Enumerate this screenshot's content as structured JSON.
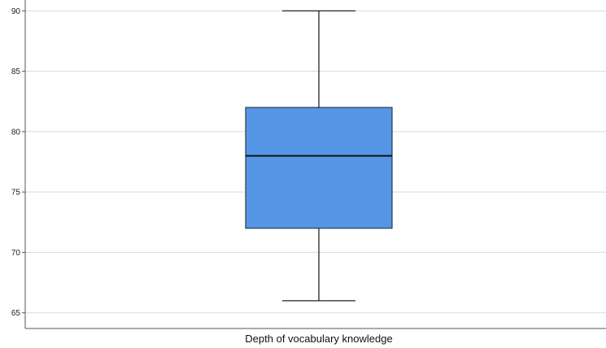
{
  "chart_data": {
    "type": "boxplot",
    "xlabel": "Depth of vocabulary knowledge",
    "ylabel": "",
    "ylim": [
      63.7,
      90.9
    ],
    "yticks": [
      65,
      70,
      75,
      80,
      85,
      90
    ],
    "grid": true,
    "series": [
      {
        "category": "Depth of vocabulary knowledge",
        "min": 66,
        "q1": 72,
        "median": 78,
        "q3": 82,
        "max": 90
      }
    ],
    "colors": {
      "box_fill": "#5596E6",
      "box_stroke": "#2B3A4A",
      "median": "#111111",
      "whisker": "#222222",
      "grid": "#D9D9D9",
      "axis": "#555555"
    }
  }
}
